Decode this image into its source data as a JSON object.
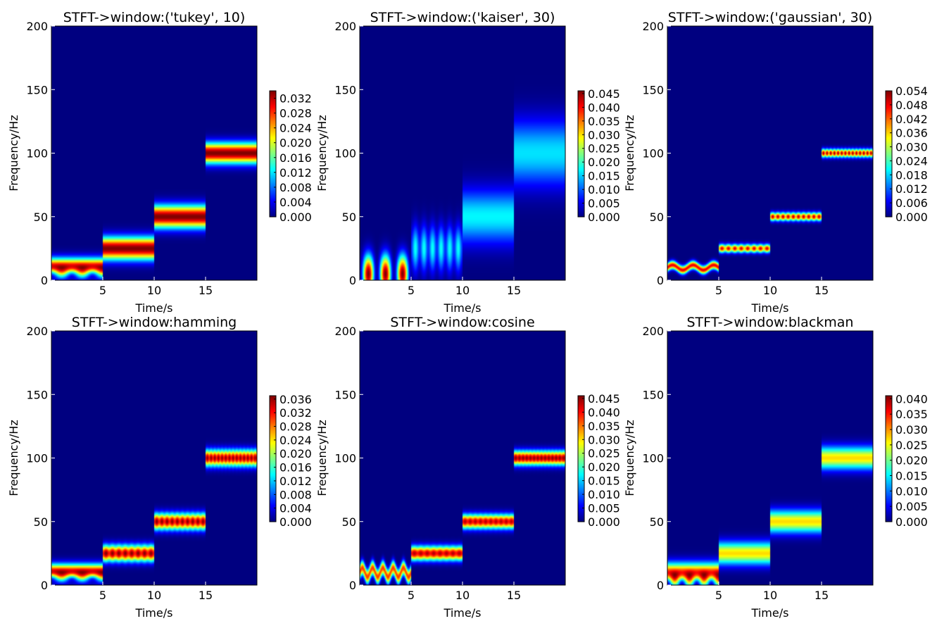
{
  "figure": {
    "colormap": "jet",
    "xlabel": "Time/s",
    "ylabel": "Frequency/Hz",
    "xlim": [
      0,
      20
    ],
    "ylim": [
      0,
      200
    ],
    "xticks": [
      "5",
      "10",
      "15"
    ],
    "yticks": [
      "0",
      "50",
      "100",
      "150",
      "200"
    ]
  },
  "chart_data": [
    {
      "type": "heatmap",
      "title": "STFT->window:('tukey', 10)",
      "xlabel": "Time/s",
      "ylabel": "Frequency/Hz",
      "xlim": [
        0,
        20
      ],
      "ylim": [
        0,
        200
      ],
      "colorbar": {
        "min": 0.0,
        "max": 0.034,
        "ticks": [
          "0.000",
          "0.004",
          "0.008",
          "0.012",
          "0.016",
          "0.020",
          "0.024",
          "0.028",
          "0.032"
        ]
      },
      "series": [
        {
          "t_start": 0,
          "t_end": 5,
          "freq_hz": 10,
          "width_hz": 9,
          "peak": 0.034,
          "ripple": 0.7,
          "ripple_cycles": 2.5,
          "ripple_mode": "notch"
        },
        {
          "t_start": 5,
          "t_end": 10,
          "freq_hz": 25,
          "width_hz": 11,
          "peak": 0.034,
          "ripple": 0.0,
          "ripple_cycles": 0
        },
        {
          "t_start": 10,
          "t_end": 15,
          "freq_hz": 50,
          "width_hz": 11,
          "peak": 0.034,
          "ripple": 0.0,
          "ripple_cycles": 0
        },
        {
          "t_start": 15,
          "t_end": 20,
          "freq_hz": 100,
          "width_hz": 10,
          "peak": 0.034,
          "ripple": 0.0,
          "ripple_cycles": 0
        }
      ]
    },
    {
      "type": "heatmap",
      "title": "STFT->window:('kaiser', 30)",
      "xlabel": "Time/s",
      "ylabel": "Frequency/Hz",
      "xlim": [
        0,
        20
      ],
      "ylim": [
        0,
        200
      ],
      "colorbar": {
        "min": 0.0,
        "max": 0.046,
        "ticks": [
          "0.000",
          "0.005",
          "0.010",
          "0.015",
          "0.020",
          "0.025",
          "0.030",
          "0.035",
          "0.040",
          "0.045"
        ]
      },
      "series": [
        {
          "t_start": 0,
          "t_end": 5,
          "freq_hz": 5,
          "width_hz": 18,
          "peak": 0.046,
          "ripple": 0.95,
          "ripple_cycles": 3,
          "ripple_mode": "pulse"
        },
        {
          "t_start": 5,
          "t_end": 10,
          "freq_hz": 25,
          "width_hz": 22,
          "peak": 0.018,
          "ripple": 0.55,
          "ripple_cycles": 6,
          "ripple_mode": "pulse"
        },
        {
          "t_start": 10,
          "t_end": 15,
          "freq_hz": 50,
          "width_hz": 26,
          "peak": 0.017,
          "ripple": 0.0,
          "ripple_cycles": 0
        },
        {
          "t_start": 15,
          "t_end": 20,
          "freq_hz": 100,
          "width_hz": 32,
          "peak": 0.016,
          "ripple": 0.0,
          "ripple_cycles": 0
        }
      ]
    },
    {
      "type": "heatmap",
      "title": "STFT->window:('gaussian', 30)",
      "xlabel": "Time/s",
      "ylabel": "Frequency/Hz",
      "xlim": [
        0,
        20
      ],
      "ylim": [
        0,
        200
      ],
      "colorbar": {
        "min": 0.0,
        "max": 0.054,
        "ticks": [
          "0.000",
          "0.006",
          "0.012",
          "0.018",
          "0.024",
          "0.030",
          "0.036",
          "0.042",
          "0.048",
          "0.054"
        ]
      },
      "series": [
        {
          "t_start": 0,
          "t_end": 5,
          "freq_hz": 10,
          "width_hz": 4,
          "peak": 0.054,
          "ripple": 0.35,
          "ripple_cycles": 2.5,
          "ripple_mode": "wave"
        },
        {
          "t_start": 5,
          "t_end": 10,
          "freq_hz": 25,
          "width_hz": 4,
          "peak": 0.05,
          "ripple": 0.3,
          "ripple_cycles": 8,
          "ripple_mode": "pulse"
        },
        {
          "t_start": 10,
          "t_end": 15,
          "freq_hz": 50,
          "width_hz": 4,
          "peak": 0.052,
          "ripple": 0.3,
          "ripple_cycles": 10,
          "ripple_mode": "pulse"
        },
        {
          "t_start": 15,
          "t_end": 20,
          "freq_hz": 100,
          "width_hz": 4,
          "peak": 0.054,
          "ripple": 0.3,
          "ripple_cycles": 14,
          "ripple_mode": "pulse"
        }
      ]
    },
    {
      "type": "heatmap",
      "title": "STFT->window:hamming",
      "xlabel": "Time/s",
      "ylabel": "Frequency/Hz",
      "xlim": [
        0,
        20
      ],
      "ylim": [
        0,
        200
      ],
      "colorbar": {
        "min": 0.0,
        "max": 0.037,
        "ticks": [
          "0.000",
          "0.004",
          "0.008",
          "0.012",
          "0.016",
          "0.020",
          "0.024",
          "0.028",
          "0.032",
          "0.036"
        ]
      },
      "series": [
        {
          "t_start": 0,
          "t_end": 5,
          "freq_hz": 10,
          "width_hz": 8,
          "peak": 0.037,
          "ripple": 0.7,
          "ripple_cycles": 2.5,
          "ripple_mode": "notch"
        },
        {
          "t_start": 5,
          "t_end": 10,
          "freq_hz": 25,
          "width_hz": 8,
          "peak": 0.037,
          "ripple": 0.15,
          "ripple_cycles": 8,
          "ripple_mode": "pulse"
        },
        {
          "t_start": 10,
          "t_end": 15,
          "freq_hz": 50,
          "width_hz": 8,
          "peak": 0.037,
          "ripple": 0.15,
          "ripple_cycles": 10,
          "ripple_mode": "pulse"
        },
        {
          "t_start": 15,
          "t_end": 20,
          "freq_hz": 100,
          "width_hz": 8,
          "peak": 0.037,
          "ripple": 0.15,
          "ripple_cycles": 14,
          "ripple_mode": "pulse"
        }
      ]
    },
    {
      "type": "heatmap",
      "title": "STFT->window:cosine",
      "xlabel": "Time/s",
      "ylabel": "Frequency/Hz",
      "xlim": [
        0,
        20
      ],
      "ylim": [
        0,
        200
      ],
      "colorbar": {
        "min": 0.0,
        "max": 0.046,
        "ticks": [
          "0.000",
          "0.005",
          "0.010",
          "0.015",
          "0.020",
          "0.025",
          "0.030",
          "0.035",
          "0.040",
          "0.045"
        ]
      },
      "series": [
        {
          "t_start": 0,
          "t_end": 5,
          "freq_hz": 10,
          "width_hz": 7,
          "peak": 0.046,
          "ripple": 0.6,
          "ripple_cycles": 5,
          "ripple_mode": "wave"
        },
        {
          "t_start": 5,
          "t_end": 10,
          "freq_hz": 25,
          "width_hz": 7,
          "peak": 0.044,
          "ripple": 0.1,
          "ripple_cycles": 8,
          "ripple_mode": "pulse"
        },
        {
          "t_start": 10,
          "t_end": 15,
          "freq_hz": 50,
          "width_hz": 7,
          "peak": 0.044,
          "ripple": 0.1,
          "ripple_cycles": 10,
          "ripple_mode": "pulse"
        },
        {
          "t_start": 15,
          "t_end": 20,
          "freq_hz": 100,
          "width_hz": 7,
          "peak": 0.046,
          "ripple": 0.1,
          "ripple_cycles": 14,
          "ripple_mode": "pulse"
        }
      ]
    },
    {
      "type": "heatmap",
      "title": "STFT->window:blackman",
      "xlabel": "Time/s",
      "ylabel": "Frequency/Hz",
      "xlim": [
        0,
        20
      ],
      "ylim": [
        0,
        200
      ],
      "colorbar": {
        "min": 0.0,
        "max": 0.041,
        "ticks": [
          "0.000",
          "0.005",
          "0.010",
          "0.015",
          "0.020",
          "0.025",
          "0.030",
          "0.035",
          "0.040"
        ]
      },
      "series": [
        {
          "t_start": 0,
          "t_end": 5,
          "freq_hz": 8,
          "width_hz": 11,
          "peak": 0.041,
          "ripple": 0.85,
          "ripple_cycles": 3.5,
          "ripple_mode": "notch"
        },
        {
          "t_start": 5,
          "t_end": 10,
          "freq_hz": 25,
          "width_hz": 11,
          "peak": 0.027,
          "ripple": 0.0,
          "ripple_cycles": 0
        },
        {
          "t_start": 10,
          "t_end": 15,
          "freq_hz": 50,
          "width_hz": 11,
          "peak": 0.027,
          "ripple": 0.0,
          "ripple_cycles": 0
        },
        {
          "t_start": 15,
          "t_end": 20,
          "freq_hz": 100,
          "width_hz": 11,
          "peak": 0.027,
          "ripple": 0.0,
          "ripple_cycles": 0
        }
      ]
    }
  ]
}
